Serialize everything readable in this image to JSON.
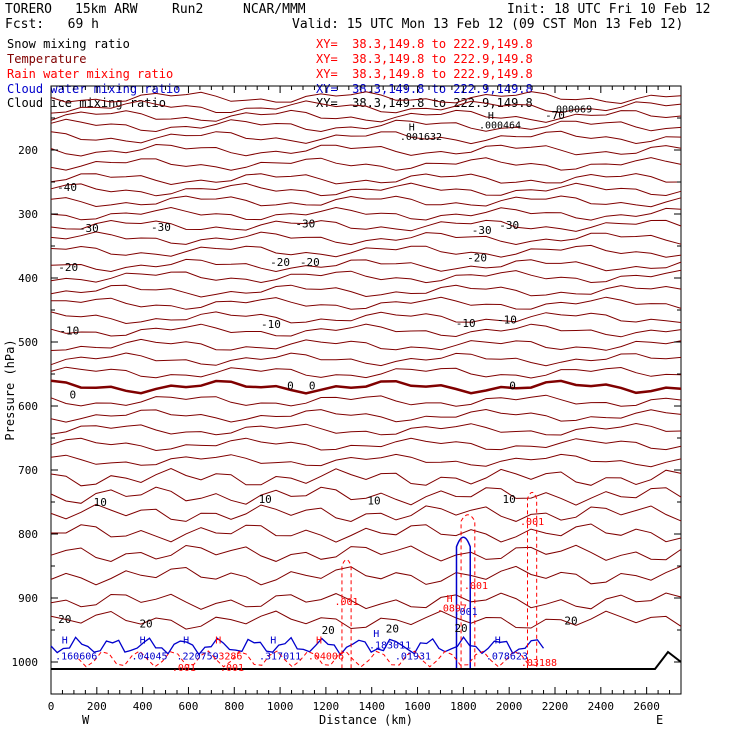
{
  "header": {
    "model": "TORERO",
    "res": "15km ARW",
    "run": "Run2",
    "org": "NCAR/MMM",
    "init": "Init: 18 UTC Fri 10 Feb 12",
    "fcst": "Fcst:   69 h",
    "valid": "Valid: 15 UTC Mon 13 Feb 12 (09 CST Mon 13 Feb 12)"
  },
  "legend": [
    {
      "field": "Snow mixing ratio",
      "xy": "XY=  38.3,149.8 to 222.9,149.8",
      "color": "#000000"
    },
    {
      "field": "Temperature",
      "xy": "XY=  38.3,149.8 to 222.9,149.8",
      "color": "#800000"
    },
    {
      "field": "Rain water mixing ratio",
      "xy": "XY=  38.3,149.8 to 222.9,149.8",
      "color": "#ff0000"
    },
    {
      "field": "Cloud water mixing ratio",
      "xy": "XY=  38.3,149.8 to 222.9,149.8",
      "color": "#0000cc"
    },
    {
      "field": "Cloud ice mixing ratio",
      "xy": "XY=  38.3,149.8 to 222.9,149.8",
      "color": "#000000"
    }
  ],
  "chart_data": {
    "type": "line",
    "title": "",
    "xlabel": "Distance (km)",
    "ylabel": "Pressure (hPa)",
    "xlim": [
      0,
      2750
    ],
    "ylim": [
      1050,
      100
    ],
    "x_ticks": [
      "0",
      "200",
      "400",
      "600",
      "800",
      "1000",
      "1200",
      "1400",
      "1600",
      "1800",
      "2000",
      "2200",
      "2400",
      "2600"
    ],
    "y_ticks": [
      "200",
      "300",
      "400",
      "500",
      "600",
      "700",
      "800",
      "900",
      "1000"
    ],
    "end_labels": {
      "left": "W",
      "right": "E"
    },
    "temperature_labels": [
      {
        "text": "-70",
        "x": 2200,
        "p": 145
      },
      {
        "text": "-40",
        "x": 70,
        "p": 258
      },
      {
        "text": "-30",
        "x": 165,
        "p": 322
      },
      {
        "text": "-30",
        "x": 480,
        "p": 320
      },
      {
        "text": "-30",
        "x": 1110,
        "p": 315
      },
      {
        "text": "-30",
        "x": 1880,
        "p": 325
      },
      {
        "text": "-30",
        "x": 2000,
        "p": 317
      },
      {
        "text": "-20",
        "x": 75,
        "p": 383
      },
      {
        "text": "-20",
        "x": 1000,
        "p": 375
      },
      {
        "text": "-20",
        "x": 1130,
        "p": 375
      },
      {
        "text": "-20",
        "x": 1860,
        "p": 368
      },
      {
        "text": "-10",
        "x": 80,
        "p": 482
      },
      {
        "text": "-10",
        "x": 960,
        "p": 472
      },
      {
        "text": "-10",
        "x": 1810,
        "p": 470
      },
      {
        "text": "-10",
        "x": 1990,
        "p": 465
      },
      {
        "text": "0",
        "x": 95,
        "p": 582
      },
      {
        "text": "0",
        "x": 1045,
        "p": 568
      },
      {
        "text": "0",
        "x": 1140,
        "p": 568
      },
      {
        "text": "0",
        "x": 2015,
        "p": 568
      },
      {
        "text": "10",
        "x": 215,
        "p": 750
      },
      {
        "text": "10",
        "x": 935,
        "p": 745
      },
      {
        "text": "10",
        "x": 1410,
        "p": 748
      },
      {
        "text": "10",
        "x": 2000,
        "p": 745
      },
      {
        "text": "20",
        "x": 60,
        "p": 933
      },
      {
        "text": "20",
        "x": 415,
        "p": 940
      },
      {
        "text": "20",
        "x": 1210,
        "p": 950
      },
      {
        "text": "20",
        "x": 1490,
        "p": 948
      },
      {
        "text": "20",
        "x": 1790,
        "p": 947
      },
      {
        "text": "20",
        "x": 2270,
        "p": 935
      }
    ],
    "moisture_labels": [
      {
        "text": "H",
        "x": 1575,
        "p": 163,
        "color": "#000000"
      },
      {
        "text": ".001632",
        "x": 1615,
        "p": 178,
        "color": "#000000"
      },
      {
        "text": "H",
        "x": 1920,
        "p": 145,
        "color": "#000000"
      },
      {
        "text": ".000464",
        "x": 1960,
        "p": 160,
        "color": "#000000"
      },
      {
        "text": ".000069",
        "x": 2270,
        "p": 135,
        "color": "#000000"
      },
      {
        "text": ".001",
        "x": 1290,
        "p": 905,
        "color": "#ff0000"
      },
      {
        "text": ".001",
        "x": 1855,
        "p": 880,
        "color": "#ff0000"
      },
      {
        "text": ".001",
        "x": 2100,
        "p": 780,
        "color": "#ff0000"
      },
      {
        "text": "H",
        "x": 1740,
        "p": 900,
        "color": "#ff0000"
      },
      {
        "text": ".0897",
        "x": 1750,
        "p": 915,
        "color": "#ff0000"
      },
      {
        "text": ".001",
        "x": 1810,
        "p": 920,
        "color": "#0000cc"
      },
      {
        "text": "H",
        "x": 60,
        "p": 965,
        "color": "#0000cc"
      },
      {
        "text": ".160606",
        "x": 110,
        "p": 990,
        "color": "#0000cc"
      },
      {
        "text": "H",
        "x": 400,
        "p": 965,
        "color": "#0000cc"
      },
      {
        "text": ".04045",
        "x": 430,
        "p": 990,
        "color": "#0000cc"
      },
      {
        "text": "H",
        "x": 590,
        "p": 965,
        "color": "#0000cc"
      },
      {
        "text": ".220759",
        "x": 640,
        "p": 990,
        "color": "#0000cc"
      },
      {
        "text": "H",
        "x": 730,
        "p": 965,
        "color": "#ff0000"
      },
      {
        "text": ".3286",
        "x": 770,
        "p": 990,
        "color": "#ff0000"
      },
      {
        "text": "H",
        "x": 970,
        "p": 965,
        "color": "#0000cc"
      },
      {
        "text": ".317011",
        "x": 1000,
        "p": 990,
        "color": "#0000cc"
      },
      {
        "text": "H",
        "x": 1170,
        "p": 965,
        "color": "#ff0000"
      },
      {
        "text": ".04006",
        "x": 1200,
        "p": 990,
        "color": "#ff0000"
      },
      {
        "text": "H",
        "x": 1420,
        "p": 955,
        "color": "#0000cc"
      },
      {
        "text": ".183011",
        "x": 1480,
        "p": 973,
        "color": "#0000cc"
      },
      {
        "text": ".01931",
        "x": 1580,
        "p": 990,
        "color": "#0000cc"
      },
      {
        "text": "H",
        "x": 1950,
        "p": 965,
        "color": "#0000cc"
      },
      {
        "text": ".078623",
        "x": 1990,
        "p": 990,
        "color": "#0000cc"
      },
      {
        "text": ".03188",
        "x": 2130,
        "p": 1000,
        "color": "#ff0000"
      },
      {
        "text": ".001",
        "x": 580,
        "p": 1008,
        "color": "#ff0000"
      },
      {
        "text": ".001",
        "x": 790,
        "p": 1008,
        "color": "#ff0000"
      }
    ]
  }
}
